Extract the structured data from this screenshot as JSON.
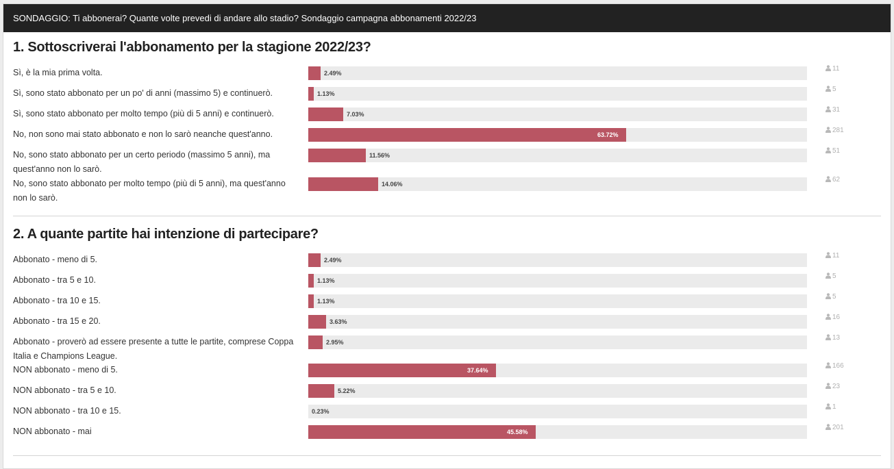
{
  "header": {
    "title": "SONDAGGIO: Ti abbonerai? Quante volte prevedi di andare allo stadio? Sondaggio campagna abbonamenti 2022/23"
  },
  "colors": {
    "bar_fill": "#b95563",
    "bar_track": "#ebebeb",
    "header_bg": "#222222"
  },
  "questions": [
    {
      "title": "1. Sottoscriverai l'abbonamento per la stagione 2022/23?",
      "options": [
        {
          "label": "Sì, è la mia prima volta.",
          "percent": 2.49,
          "percent_label": "2.49%",
          "count": "11"
        },
        {
          "label": "Sì, sono stato abbonato per un po' di anni (massimo 5) e continuerò.",
          "percent": 1.13,
          "percent_label": "1.13%",
          "count": "5"
        },
        {
          "label": "Sì, sono stato abbonato per molto tempo (più di 5 anni) e continuerò.",
          "percent": 7.03,
          "percent_label": "7.03%",
          "count": "31"
        },
        {
          "label": "No, non sono mai stato abbonato e non lo sarò neanche quest'anno.",
          "percent": 63.72,
          "percent_label": "63.72%",
          "count": "281"
        },
        {
          "label": "No, sono stato abbonato per un certo periodo (massimo 5 anni), ma quest'anno non lo sarò.",
          "percent": 11.56,
          "percent_label": "11.56%",
          "count": "51"
        },
        {
          "label": "No, sono stato abbonato per molto tempo (più di 5 anni), ma quest'anno non lo sarò.",
          "percent": 14.06,
          "percent_label": "14.06%",
          "count": "62"
        }
      ]
    },
    {
      "title": "2. A quante partite hai intenzione di partecipare?",
      "options": [
        {
          "label": "Abbonato - meno di 5.",
          "percent": 2.49,
          "percent_label": "2.49%",
          "count": "11"
        },
        {
          "label": "Abbonato - tra 5 e 10.",
          "percent": 1.13,
          "percent_label": "1.13%",
          "count": "5"
        },
        {
          "label": "Abbonato - tra 10 e 15.",
          "percent": 1.13,
          "percent_label": "1.13%",
          "count": "5"
        },
        {
          "label": "Abbonato - tra 15 e 20.",
          "percent": 3.63,
          "percent_label": "3.63%",
          "count": "16"
        },
        {
          "label": "Abbonato - proverò ad essere presente a tutte le partite, comprese Coppa Italia e Champions League.",
          "percent": 2.95,
          "percent_label": "2.95%",
          "count": "13"
        },
        {
          "label": "NON abbonato - meno di 5.",
          "percent": 37.64,
          "percent_label": "37.64%",
          "count": "166"
        },
        {
          "label": "NON abbonato - tra 5 e 10.",
          "percent": 5.22,
          "percent_label": "5.22%",
          "count": "23"
        },
        {
          "label": "NON abbonato - tra 10 e 15.",
          "percent": 0.23,
          "percent_label": "0.23%",
          "count": "1"
        },
        {
          "label": "NON abbonato - mai",
          "percent": 45.58,
          "percent_label": "45.58%",
          "count": "201"
        }
      ]
    }
  ]
}
